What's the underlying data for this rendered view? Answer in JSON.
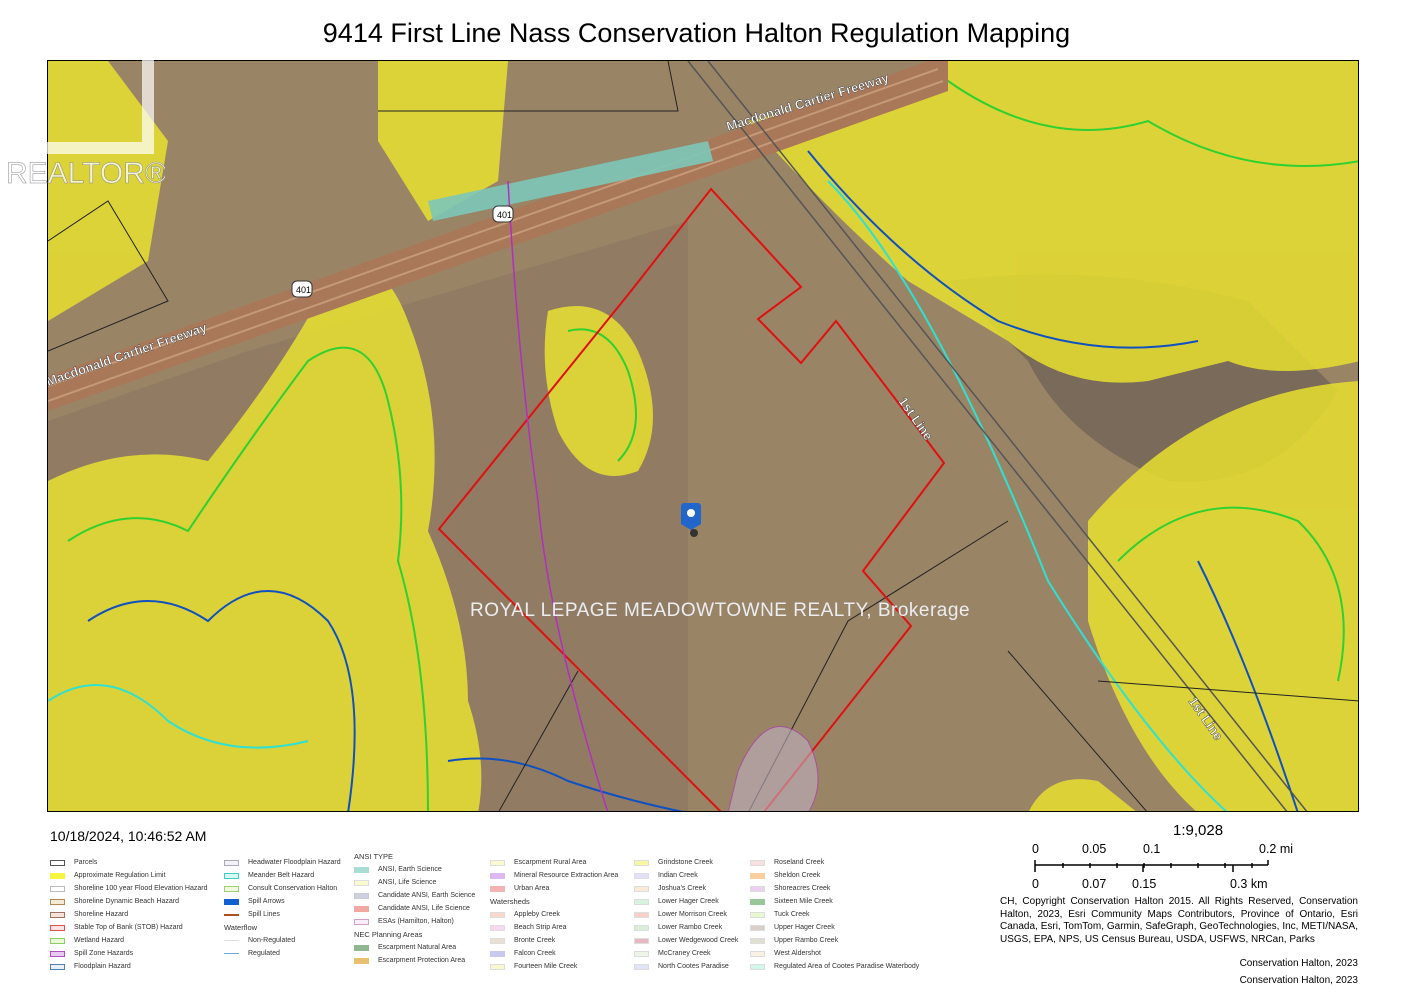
{
  "title": "9414 First Line Nass Conservation Halton Regulation Mapping",
  "timestamp": "10/18/2024, 10:46:52 AM",
  "map_labels": {
    "highway_name": "Macdonald Cartier Freeway",
    "highway_shield": "401",
    "road": "1st Line"
  },
  "legend": {
    "col1": [
      {
        "label": "Parcels",
        "color": "#ffffff",
        "border": "#555"
      },
      {
        "label": "Approximate Regulation Limit",
        "color": "#f5f542",
        "border": "#f5f542"
      },
      {
        "label": "Shoreline 100 year Flood Elevation Hazard",
        "color": "#ffffff",
        "border": "#bbb"
      },
      {
        "label": "Shoreline Dynamic Beach Hazard",
        "color": "#f3ead5",
        "border": "#b08a50"
      },
      {
        "label": "Shoreline Hazard",
        "color": "#f3e3d8",
        "border": "#a07060"
      },
      {
        "label": "Stable Top of Bank (STOB) Hazard",
        "color": "#fbe3e3",
        "border": "#e05050"
      },
      {
        "label": "Wetland Hazard",
        "color": "#e8f8d8",
        "border": "#8ad060"
      },
      {
        "label": "Spill Zone Hazards",
        "color": "#e8c8f0",
        "border": "#b050c0"
      },
      {
        "label": "Floodplain Hazard",
        "color": "#e8f0f8",
        "border": "#5080b0"
      }
    ],
    "col2": [
      {
        "label": "Headwater Floodplain Hazard",
        "color": "#f2f2f8",
        "border": "#aab"
      },
      {
        "label": "Meander Belt Hazard",
        "color": "#d8f8f4",
        "border": "#40d0c0"
      },
      {
        "label": "Consult Conservation Halton",
        "color": "#f0f8e0",
        "border": "#a0d070"
      },
      {
        "label": "Spill Arrows",
        "color": "#1060d0",
        "border": "#1060d0"
      },
      {
        "label": "Spill Lines",
        "color": "#ffffff",
        "border": "#fff"
      },
      {
        "header": "Waterflow"
      },
      {
        "label": "Non-Regulated",
        "color": "#ffffff",
        "border": "#fff"
      },
      {
        "label": "Regulated",
        "color": "#ffffff",
        "border": "#fff"
      }
    ],
    "col3": [
      {
        "header": "ANSI TYPE"
      },
      {
        "label": "ANSI, Earth Science",
        "color": "#a8dcd4",
        "border": "#a8dcd4"
      },
      {
        "label": "ANSI, Life Science",
        "color": "#fafad0",
        "border": "#ddd"
      },
      {
        "label": "Candidate ANSI, Earth Science",
        "color": "#d0d0e4",
        "border": "#ccc"
      },
      {
        "label": "Candidate ANSI, Life Science",
        "color": "#f0a8a0",
        "border": "#f0a8a0"
      },
      {
        "label": "ESAs (Hamilton, Halton)",
        "color": "#fbeefb",
        "border": "#d0a0d0"
      },
      {
        "header": "NEC Planning Areas"
      },
      {
        "label": "Escarpment Natural Area",
        "color": "#90b890",
        "border": "#90b890"
      },
      {
        "label": "Escarpment Protection Area",
        "color": "#e8c070",
        "border": "#e8c070"
      }
    ],
    "col4": [
      {
        "label": "Escarpment Rural Area",
        "color": "#fafad0",
        "border": "#ddd"
      },
      {
        "label": "Mineral Resource Extraction Area",
        "color": "#e0b8f0",
        "border": "#e0b8f0"
      },
      {
        "label": "Urban Area",
        "color": "#f4b4b4",
        "border": "#f4b4b4"
      },
      {
        "header": "Watersheds"
      },
      {
        "label": "Appleby Creek",
        "color": "#f8d8c8",
        "border": "#ddd"
      },
      {
        "label": "Beach Strip Area",
        "color": "#f8d8f0",
        "border": "#ddd"
      },
      {
        "label": "Bronte Creek",
        "color": "#e8e0d0",
        "border": "#ddd"
      },
      {
        "label": "Falcon Creek",
        "color": "#c8c8f0",
        "border": "#c8c8f0"
      },
      {
        "label": "Fourteen Mile Creek",
        "color": "#f8f8d0",
        "border": "#ddd"
      }
    ],
    "col5": [
      {
        "label": "Grindstone Creek",
        "color": "#f8f8a0",
        "border": "#ddd"
      },
      {
        "label": "Indian Creek",
        "color": "#e4e0f8",
        "border": "#ddd"
      },
      {
        "label": "Joshua's Creek",
        "color": "#fbecd8",
        "border": "#ddd"
      },
      {
        "label": "Lower Hager Creek",
        "color": "#d8f4e0",
        "border": "#ddd"
      },
      {
        "label": "Lower Morrison Creek",
        "color": "#f8d0c8",
        "border": "#ddd"
      },
      {
        "label": "Lower Rambo Creek",
        "color": "#d8f0d8",
        "border": "#ddd"
      },
      {
        "label": "Lower Wedgewood Creek",
        "color": "#e8b8c0",
        "border": "#ddd"
      },
      {
        "label": "McCraney Creek",
        "color": "#eef4e8",
        "border": "#ddd"
      },
      {
        "label": "North Cootes Paradise",
        "color": "#e0e4f4",
        "border": "#ddd"
      }
    ],
    "col6": [
      {
        "label": "Roseland Creek",
        "color": "#f8e0e0",
        "border": "#ddd"
      },
      {
        "label": "Sheldon Creek",
        "color": "#f8d0a0",
        "border": "#f8d0a0"
      },
      {
        "label": "Shoreacres Creek",
        "color": "#ecd0f0",
        "border": "#ddd"
      },
      {
        "label": "Sixteen Mile Creek",
        "color": "#98c898",
        "border": "#98c898"
      },
      {
        "label": "Tuck Creek",
        "color": "#e8f8d0",
        "border": "#ddd"
      },
      {
        "label": "Upper Hager Creek",
        "color": "#d8d0c8",
        "border": "#ddd"
      },
      {
        "label": "Upper Rambo Creek",
        "color": "#e0e0d0",
        "border": "#ddd"
      },
      {
        "label": "West Aldershot",
        "color": "#f8f0e0",
        "border": "#ddd"
      },
      {
        "label": "Regulated Area of Cootes Paradise Waterbody",
        "color": "#d0f8ec",
        "border": "#ddd"
      }
    ]
  },
  "scale": {
    "ratio": "1:9,028",
    "mi_ticks": [
      "0",
      "0.05",
      "0.1",
      "0.2 mi"
    ],
    "km_ticks": [
      "0",
      "0.07",
      "0.15",
      "0.3 km"
    ]
  },
  "credits": "CH, Copyright Conservation Halton 2015.  All Rights Reserved, Conservation Halton, 2023, Esri Community Maps Contributors, Province of Ontario, Esri Canada, Esri, TomTom, Garmin, SafeGraph, GeoTechnologies, Inc, METI/NASA, USGS, EPA, NPS, US Census Bureau, USDA, USFWS, NRCan, Parks",
  "copyright_1": "Conservation Halton, 2023",
  "copyright_2": "Conservation Halton, 2023",
  "watermark": "ROYAL LEPAGE MEADOWTOWNE REALTY, Brokerage",
  "logo_text": "REALTOR®",
  "colors": {
    "regulation": "#f0e830",
    "parcel_outline": "#e01010",
    "wetland": "#30d030",
    "floodplain": "#1050c0",
    "meander": "#30e0d0",
    "aerial": "#9a8466"
  }
}
